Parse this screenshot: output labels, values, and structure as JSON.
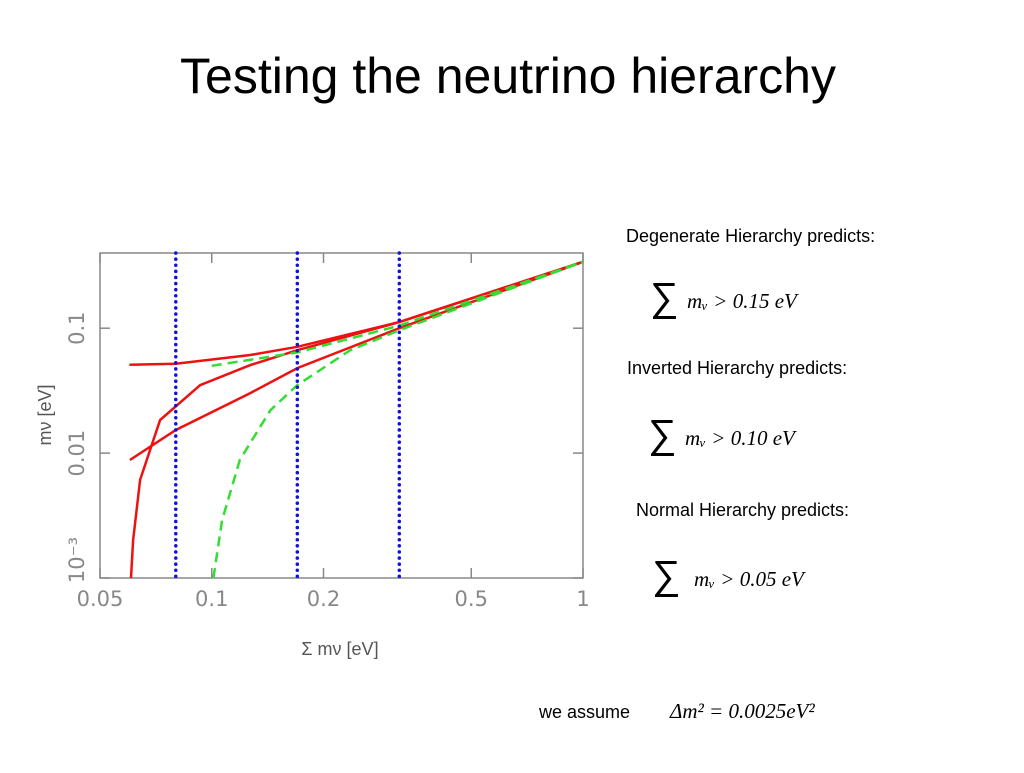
{
  "slide": {
    "title": "Testing the neutrino hierarchy",
    "sum_symbol": "∑",
    "predictions": [
      {
        "label": "Degenerate Hierarchy predicts:",
        "expr": "mᵥ > 0.15 eV"
      },
      {
        "label": "Inverted Hierarchy predicts:",
        "expr": "mᵥ > 0.10 eV"
      },
      {
        "label": "Normal Hierarchy predicts:",
        "expr": "mᵥ > 0.05 eV"
      }
    ],
    "assumption_label": "we assume",
    "assumption_expr": "Δm² = 0.0025eV²"
  },
  "chart_data": {
    "type": "line",
    "log_x": true,
    "log_y": true,
    "x_label": "Σ mν [eV]",
    "y_label": "mν [eV]",
    "xlim": [
      0.05,
      1
    ],
    "ylim": [
      0.001,
      0.4
    ],
    "xticks": [
      0.05,
      0.1,
      0.2,
      0.5,
      1
    ],
    "yticks": [
      {
        "value": 0.001,
        "label": "10⁻³"
      },
      0.01,
      0.1
    ],
    "series": [
      {
        "color": "#ee1111",
        "dash": false,
        "x": [
          0.06,
          0.08,
          0.127,
          0.17,
          0.32,
          1
        ],
        "values": [
          0.051,
          0.052,
          0.061,
          0.071,
          0.112,
          0.34
        ]
      },
      {
        "color": "#ee1111",
        "dash": false,
        "x": [
          0.0602,
          0.08,
          0.127,
          0.17,
          0.32,
          1
        ],
        "values": [
          0.0088,
          0.0153,
          0.0302,
          0.0479,
          0.1,
          0.34
        ]
      },
      {
        "color": "#ee1111",
        "dash": false,
        "x": [
          0.0606,
          0.0614,
          0.0641,
          0.0726,
          0.0931,
          0.127,
          0.17,
          0.32,
          1
        ],
        "values": [
          0.001,
          0.002,
          0.0061,
          0.0184,
          0.035,
          0.0506,
          0.0667,
          0.112,
          0.34
        ]
      },
      {
        "color": "#33dd33",
        "dash": true,
        "x": [
          0.1,
          0.17,
          0.32,
          1
        ],
        "values": [
          0.05,
          0.064,
          0.105,
          0.34
        ]
      },
      {
        "color": "#33dd33",
        "dash": true,
        "x": [
          0.101,
          0.1066,
          0.119,
          0.144,
          0.17,
          0.236,
          0.32,
          1
        ],
        "values": [
          0.001,
          0.0029,
          0.0088,
          0.0221,
          0.035,
          0.0667,
          0.0964,
          0.34
        ]
      }
    ],
    "vlines": {
      "color": "#1111dd",
      "values": [
        0.08,
        0.17,
        0.32
      ]
    }
  }
}
